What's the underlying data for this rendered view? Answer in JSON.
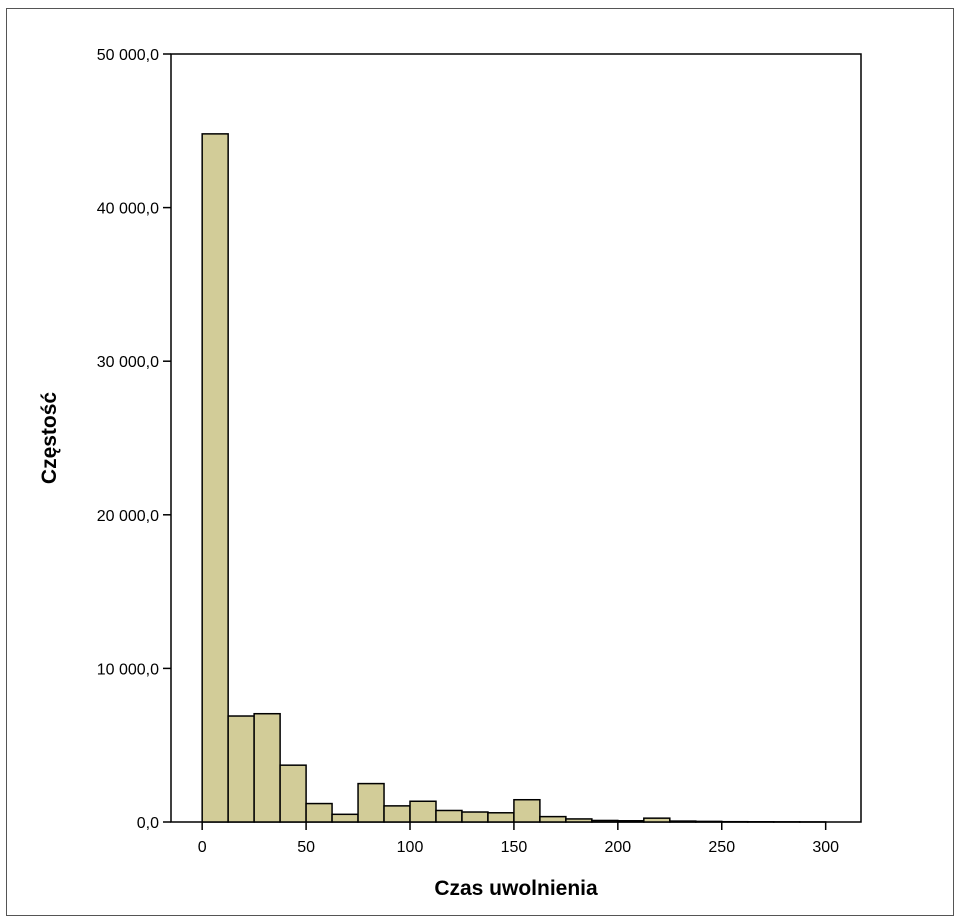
{
  "chart_data": {
    "type": "bar",
    "title": "",
    "xlabel": "Czas uwolnienia",
    "ylabel": "Częstość",
    "xlim": [
      -15,
      317
    ],
    "ylim": [
      0,
      50000
    ],
    "bin_width": 12.5,
    "x_ticks": [
      0,
      50,
      100,
      150,
      200,
      250,
      300
    ],
    "x_tick_labels": [
      "0",
      "50",
      "100",
      "150",
      "200",
      "250",
      "300"
    ],
    "y_ticks": [
      0,
      10000,
      20000,
      30000,
      40000,
      50000
    ],
    "y_tick_labels": [
      "0,0",
      "10 000,0",
      "20 000,0",
      "30 000,0",
      "40 000,0",
      "50 000,0"
    ],
    "bins": [
      {
        "x0": 0,
        "x1": 12.5,
        "value": 44800
      },
      {
        "x0": 12.5,
        "x1": 25,
        "value": 6900
      },
      {
        "x0": 25,
        "x1": 37.5,
        "value": 7050
      },
      {
        "x0": 37.5,
        "x1": 50,
        "value": 3700
      },
      {
        "x0": 50,
        "x1": 62.5,
        "value": 1200
      },
      {
        "x0": 62.5,
        "x1": 75,
        "value": 500
      },
      {
        "x0": 75,
        "x1": 87.5,
        "value": 2500
      },
      {
        "x0": 87.5,
        "x1": 100,
        "value": 1050
      },
      {
        "x0": 100,
        "x1": 112.5,
        "value": 1350
      },
      {
        "x0": 112.5,
        "x1": 125,
        "value": 750
      },
      {
        "x0": 125,
        "x1": 137.5,
        "value": 650
      },
      {
        "x0": 137.5,
        "x1": 150,
        "value": 600
      },
      {
        "x0": 150,
        "x1": 162.5,
        "value": 1450
      },
      {
        "x0": 162.5,
        "x1": 175,
        "value": 350
      },
      {
        "x0": 175,
        "x1": 187.5,
        "value": 200
      },
      {
        "x0": 187.5,
        "x1": 200,
        "value": 100
      },
      {
        "x0": 200,
        "x1": 212.5,
        "value": 80
      },
      {
        "x0": 212.5,
        "x1": 225,
        "value": 250
      },
      {
        "x0": 225,
        "x1": 237.5,
        "value": 60
      },
      {
        "x0": 237.5,
        "x1": 250,
        "value": 40
      },
      {
        "x0": 250,
        "x1": 262.5,
        "value": 20
      },
      {
        "x0": 262.5,
        "x1": 275,
        "value": 15
      },
      {
        "x0": 275,
        "x1": 287.5,
        "value": 10
      },
      {
        "x0": 287.5,
        "x1": 300,
        "value": 5
      }
    ],
    "grid": false,
    "legend": "none",
    "colors": {
      "bar_fill": "#d2cc98",
      "bar_stroke": "#000000",
      "background": "#ffffff"
    }
  }
}
